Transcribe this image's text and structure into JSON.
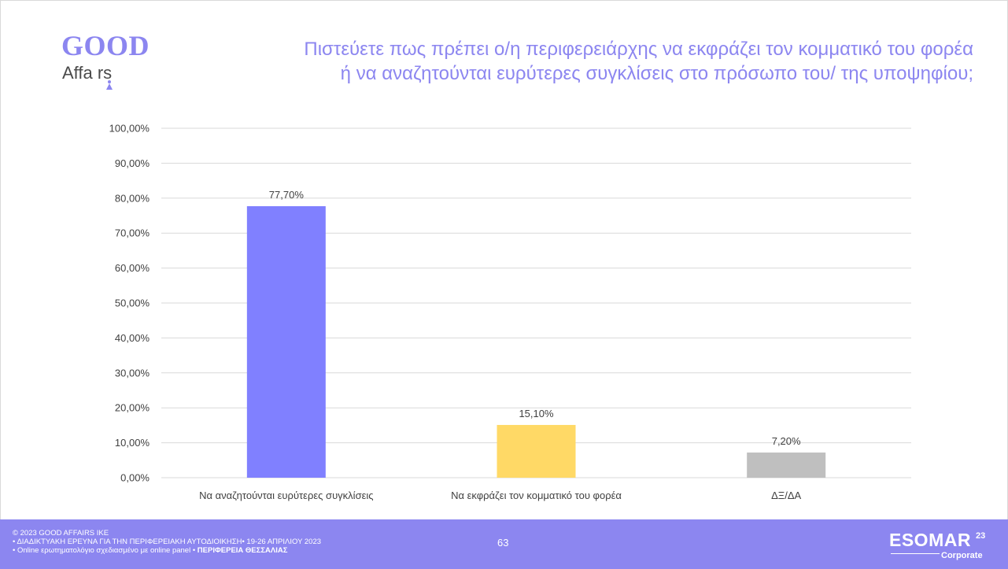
{
  "logo": {
    "good": "GOOD",
    "affairs": "Affa rs"
  },
  "title": {
    "line1": "Πιστεύετε πως πρέπει ο/η περιφερειάρχης  να εκφράζει τον κομματικό του φορέα",
    "line2": "ή να αναζητούνται ευρύτερες συγκλίσεις στο πρόσωπο του/ της υποψηφίου;"
  },
  "chart_data": {
    "type": "bar",
    "categories": [
      "Να αναζητούνται ευρύτερες συγκλίσεις",
      "Να εκφράζει τον κομματικό του φορέα",
      "ΔΞ/ΔΑ"
    ],
    "values": [
      77.7,
      15.1,
      7.2
    ],
    "data_labels": [
      "77,70%",
      "15,10%",
      "7,20%"
    ],
    "colors": [
      "#8080ff",
      "#ffd966",
      "#bfbfbf"
    ],
    "ylim": [
      0,
      100
    ],
    "y_ticks": [
      0,
      10,
      20,
      30,
      40,
      50,
      60,
      70,
      80,
      90,
      100
    ],
    "y_tick_labels": [
      "0,00%",
      "10,00%",
      "20,00%",
      "30,00%",
      "40,00%",
      "50,00%",
      "60,00%",
      "70,00%",
      "80,00%",
      "90,00%",
      "100,00%"
    ],
    "grid": true,
    "xlabel": "",
    "ylabel": ""
  },
  "footer": {
    "copyright": "© 2023 GOOD AFFAIRS IKE",
    "survey": "• ΔΙΑΔΙΚΤΥΑΚΗ ΕΡΕΥΝΑ  ΓΙΑ ΤΗΝ ΠΕΡΙΦΕΡΕΙΑΚΗ ΑΥΤΟΔΙΟΙΚΗΣΗ• 19-26 ΑΠΡΙΛΙΟΥ 2023",
    "method": "• Online ερωτηματολόγιο σχεδιασμένο με online panel  •",
    "region": "ΠΕΡΙΦΕΡΕΙΑ ΘΕΣΣΑΛΙΑΣ",
    "page_number": "63",
    "esomar_name": "ESOMAR",
    "esomar_year": "23",
    "esomar_sub": "Corporate"
  },
  "colors": {
    "accent": "#8c86f0",
    "footer_bg": "#8c86f0",
    "grid": "#d9d9d9",
    "text": "#404040"
  }
}
